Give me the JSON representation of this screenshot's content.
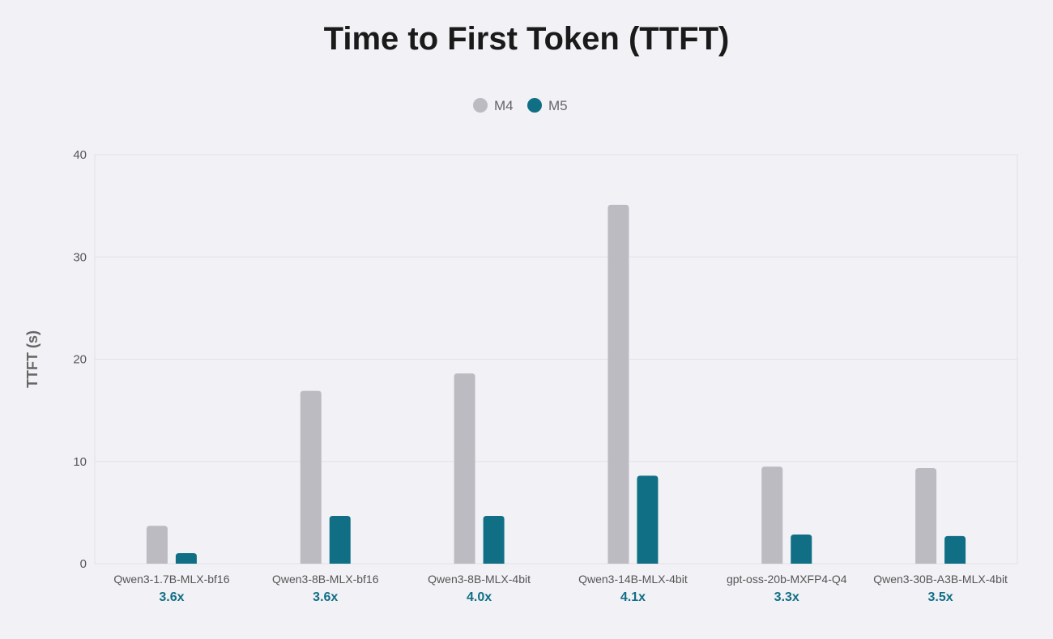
{
  "chart_data": {
    "type": "bar",
    "title": "Time to First Token (TTFT)",
    "xlabel": "",
    "ylabel": "TTFT (s)",
    "ylim": [
      0,
      40
    ],
    "yticks": [
      0,
      10,
      20,
      30,
      40
    ],
    "grid": true,
    "legend_placement": "top-center",
    "categories": [
      "Qwen3-1.7B-MLX-bf16",
      "Qwen3-8B-MLX-bf16",
      "Qwen3-8B-MLX-4bit",
      "Qwen3-14B-MLX-4bit",
      "gpt-oss-20b-MXFP4-Q4",
      "Qwen3-30B-A3B-MLX-4bit"
    ],
    "speedup_labels": [
      "3.6x",
      "3.6x",
      "4.0x",
      "4.1x",
      "3.3x",
      "3.5x"
    ],
    "series": [
      {
        "name": "M4",
        "color": "#bcbbc1",
        "values": [
          3.7,
          16.9,
          18.6,
          35.1,
          9.5,
          9.35
        ]
      },
      {
        "name": "M5",
        "color": "#116f85",
        "values": [
          1.03,
          4.67,
          4.67,
          8.6,
          2.85,
          2.7
        ]
      }
    ]
  }
}
